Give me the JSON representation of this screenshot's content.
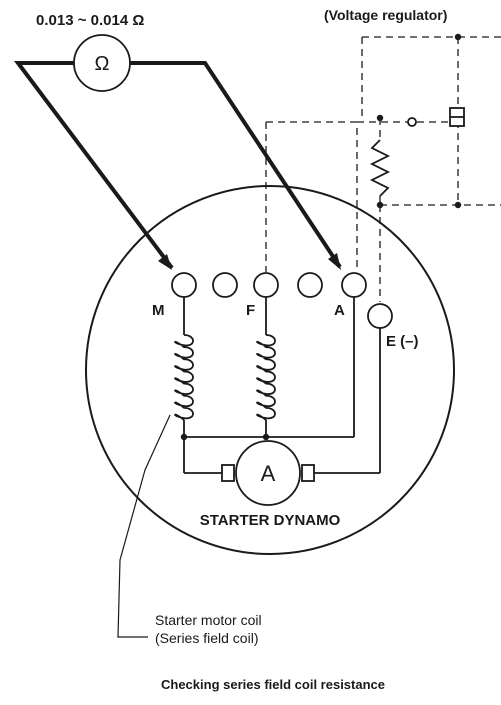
{
  "ohmmeter": {
    "reading": "0.013 ~ 0.014 Ω",
    "symbol": "Ω"
  },
  "regulator": {
    "label": "(Voltage regulator)"
  },
  "dynamo": {
    "title": "STARTER DYNAMO",
    "ammeter_symbol": "A",
    "terminals": {
      "m": "M",
      "f": "F",
      "a": "A",
      "e": "E (–)"
    }
  },
  "coil_callout": {
    "line1": "Starter motor coil",
    "line2": "(Series field coil)"
  },
  "caption": "Checking series field coil resistance",
  "colors": {
    "ink": "#1a1a1a",
    "paper": "#ffffff"
  }
}
